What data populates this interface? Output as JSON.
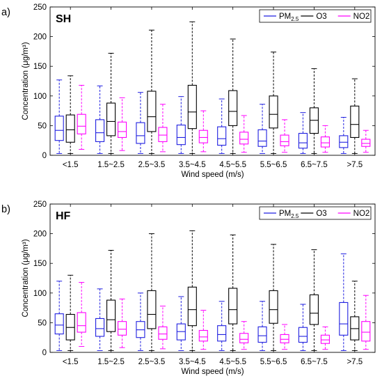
{
  "chart_data": [
    {
      "type": "box",
      "panel_label": "a)",
      "site": "SH",
      "xlabel": "Wind speed (m/s)",
      "ylabel": "Concentration (μg/m³)",
      "ylim": [
        0,
        250
      ],
      "yticks": [
        0,
        50,
        100,
        150,
        200,
        250
      ],
      "categories": [
        "<1.5",
        "1.5~2.5",
        "2.5~3.5",
        "3.5~4.5",
        "4.5~5.5",
        "5.5~6.5",
        "6.5~7.5",
        ">7.5"
      ],
      "legend_position": "top-right",
      "series": [
        {
          "name": "PM2.5",
          "color": "#1f1fe0",
          "boxes": [
            {
              "whislo": 3,
              "q1": 25,
              "med": 42,
              "q3": 66,
              "whishi": 127
            },
            {
              "whislo": 3,
              "q1": 23,
              "med": 38,
              "q3": 60,
              "whishi": 117
            },
            {
              "whislo": 3,
              "q1": 20,
              "med": 33,
              "q3": 55,
              "whishi": 106
            },
            {
              "whislo": 3,
              "q1": 18,
              "med": 30,
              "q3": 51,
              "whishi": 99
            },
            {
              "whislo": 3,
              "q1": 17,
              "med": 28,
              "q3": 48,
              "whishi": 95
            },
            {
              "whislo": 3,
              "q1": 15,
              "med": 24,
              "q3": 43,
              "whishi": 86
            },
            {
              "whislo": 3,
              "q1": 12,
              "med": 21,
              "q3": 37,
              "whishi": 72
            },
            {
              "whislo": 3,
              "q1": 13,
              "med": 22,
              "q3": 33,
              "whishi": 64
            }
          ]
        },
        {
          "name": "O3",
          "color": "#000000",
          "boxes": [
            {
              "whislo": 3,
              "q1": 22,
              "med": 43,
              "q3": 68,
              "whishi": 134
            },
            {
              "whislo": 3,
              "q1": 33,
              "med": 57,
              "q3": 88,
              "whishi": 172
            },
            {
              "whislo": 3,
              "q1": 40,
              "med": 65,
              "q3": 108,
              "whishi": 211
            },
            {
              "whislo": 3,
              "q1": 45,
              "med": 73,
              "q3": 118,
              "whishi": 225
            },
            {
              "whislo": 3,
              "q1": 50,
              "med": 74,
              "q3": 109,
              "whishi": 196
            },
            {
              "whislo": 3,
              "q1": 46,
              "med": 69,
              "q3": 100,
              "whishi": 174
            },
            {
              "whislo": 3,
              "q1": 37,
              "med": 59,
              "q3": 80,
              "whishi": 146
            },
            {
              "whislo": 3,
              "q1": 30,
              "med": 52,
              "q3": 83,
              "whishi": 129
            }
          ]
        },
        {
          "name": "NO2",
          "color": "#ff00ff",
          "boxes": [
            {
              "whislo": 10,
              "q1": 36,
              "med": 49,
              "q3": 69,
              "whishi": 118
            },
            {
              "whislo": 8,
              "q1": 30,
              "med": 40,
              "q3": 56,
              "whishi": 97
            },
            {
              "whislo": 6,
              "q1": 23,
              "med": 34,
              "q3": 47,
              "whishi": 86
            },
            {
              "whislo": 6,
              "q1": 21,
              "med": 30,
              "q3": 42,
              "whishi": 75
            },
            {
              "whislo": 5,
              "q1": 19,
              "med": 27,
              "q3": 39,
              "whishi": 67
            },
            {
              "whislo": 5,
              "q1": 16,
              "med": 23,
              "q3": 34,
              "whishi": 60
            },
            {
              "whislo": 5,
              "q1": 14,
              "med": 21,
              "q3": 31,
              "whishi": 50
            },
            {
              "whislo": 5,
              "q1": 15,
              "med": 20,
              "q3": 27,
              "whishi": 42
            }
          ]
        }
      ]
    },
    {
      "type": "box",
      "panel_label": "b)",
      "site": "HF",
      "xlabel": "Wind speed (m/s)",
      "ylabel": "Concentration (μg/m³)",
      "ylim": [
        0,
        250
      ],
      "yticks": [
        0,
        50,
        100,
        150,
        200,
        250
      ],
      "categories": [
        "<1.5",
        "1.5~2.5",
        "2.5~3.5",
        "3.5~4.5",
        "4.5~5.5",
        "5.5~6.5",
        "6.5~7.5",
        ">7.5"
      ],
      "legend_position": "top-right",
      "series": [
        {
          "name": "PM2.5",
          "color": "#1f1fe0",
          "boxes": [
            {
              "whislo": 3,
              "q1": 31,
              "med": 46,
              "q3": 65,
              "whishi": 120
            },
            {
              "whislo": 3,
              "q1": 27,
              "med": 40,
              "q3": 57,
              "whishi": 107
            },
            {
              "whislo": 3,
              "q1": 25,
              "med": 38,
              "q3": 52,
              "whishi": 100
            },
            {
              "whislo": 3,
              "q1": 21,
              "med": 35,
              "q3": 48,
              "whishi": 94
            },
            {
              "whislo": 3,
              "q1": 19,
              "med": 30,
              "q3": 45,
              "whishi": 86
            },
            {
              "whislo": 3,
              "q1": 17,
              "med": 28,
              "q3": 43,
              "whishi": 86
            },
            {
              "whislo": 3,
              "q1": 17,
              "med": 27,
              "q3": 42,
              "whishi": 81
            },
            {
              "whislo": 3,
              "q1": 29,
              "med": 48,
              "q3": 84,
              "whishi": 166
            }
          ]
        },
        {
          "name": "O3",
          "color": "#000000",
          "boxes": [
            {
              "whislo": 3,
              "q1": 21,
              "med": 42,
              "q3": 64,
              "whishi": 130
            },
            {
              "whislo": 3,
              "q1": 35,
              "med": 55,
              "q3": 88,
              "whishi": 172
            },
            {
              "whislo": 3,
              "q1": 40,
              "med": 64,
              "q3": 104,
              "whishi": 200
            },
            {
              "whislo": 3,
              "q1": 45,
              "med": 72,
              "q3": 110,
              "whishi": 205
            },
            {
              "whislo": 3,
              "q1": 48,
              "med": 72,
              "q3": 108,
              "whishi": 198
            },
            {
              "whislo": 3,
              "q1": 49,
              "med": 72,
              "q3": 104,
              "whishi": 182
            },
            {
              "whislo": 3,
              "q1": 47,
              "med": 66,
              "q3": 97,
              "whishi": 173
            },
            {
              "whislo": 3,
              "q1": 21,
              "med": 40,
              "q3": 60,
              "whishi": 120
            }
          ]
        },
        {
          "name": "NO2",
          "color": "#ff00ff",
          "boxes": [
            {
              "whislo": 10,
              "q1": 34,
              "med": 45,
              "q3": 67,
              "whishi": 118
            },
            {
              "whislo": 8,
              "q1": 29,
              "med": 39,
              "q3": 52,
              "whishi": 90
            },
            {
              "whislo": 6,
              "q1": 22,
              "med": 31,
              "q3": 43,
              "whishi": 78
            },
            {
              "whislo": 5,
              "q1": 19,
              "med": 26,
              "q3": 37,
              "whishi": 71
            },
            {
              "whislo": 5,
              "q1": 16,
              "med": 22,
              "q3": 32,
              "whishi": 52
            },
            {
              "whislo": 5,
              "q1": 16,
              "med": 22,
              "q3": 30,
              "whishi": 47
            },
            {
              "whislo": 5,
              "q1": 15,
              "med": 21,
              "q3": 29,
              "whishi": 43
            },
            {
              "whislo": 5,
              "q1": 19,
              "med": 34,
              "q3": 52,
              "whishi": 96
            }
          ]
        }
      ]
    }
  ]
}
